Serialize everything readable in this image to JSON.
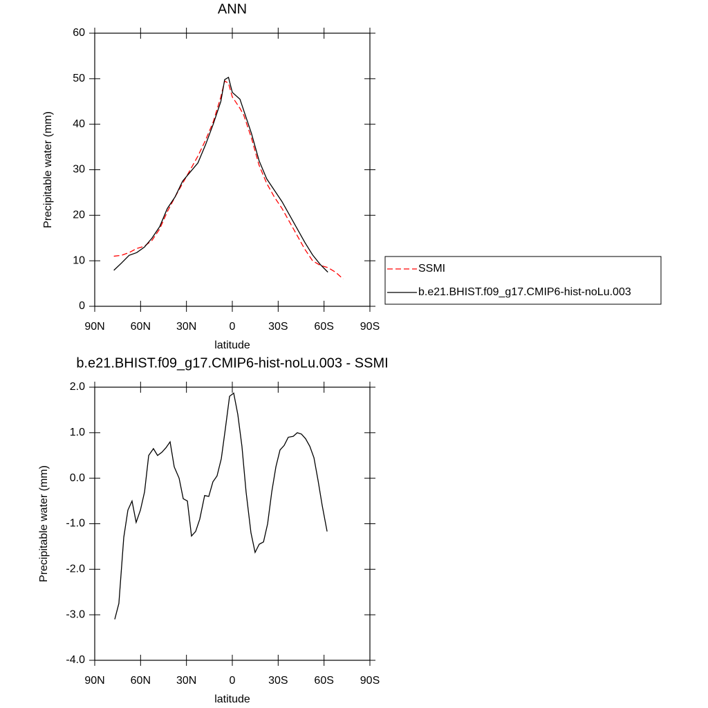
{
  "chart_data": [
    {
      "type": "line",
      "title": "ANN",
      "xlabel": "latitude",
      "ylabel": "Precipitable water (mm)",
      "x": [
        77.5,
        72.5,
        67.5,
        62.5,
        57.5,
        52.5,
        47.5,
        42.5,
        37.5,
        32.5,
        27.5,
        22.5,
        17.5,
        12.5,
        7.5,
        5,
        2.5,
        0,
        -5,
        -7.5,
        -12.5,
        -17.5,
        -22.5,
        -27.5,
        -32.5,
        -37.5,
        -42.5,
        -47.5,
        -52.5,
        -57.5,
        -62.5,
        -67.5,
        -72.5
      ],
      "series": [
        {
          "name": "SSMI",
          "color": "#ff0000",
          "dash": true,
          "values": [
            11,
            11.2,
            11.8,
            12.7,
            13.2,
            14.5,
            17,
            20.8,
            24,
            27,
            30,
            33,
            36.5,
            40.5,
            46,
            49.5,
            49,
            46,
            43.5,
            42,
            37,
            31,
            27,
            24,
            21.5,
            18.5,
            15.5,
            12.5,
            10,
            9,
            8.5,
            7.5,
            6
          ]
        },
        {
          "name": "b.e21.BHIST.f09_g17.CMIP6-hist-noLu.003",
          "color": "#000000",
          "dash": false,
          "values": [
            7.9,
            9.5,
            11.2,
            11.8,
            13,
            15,
            17.5,
            21.5,
            24,
            27.5,
            29.5,
            31.5,
            35.5,
            40,
            45,
            49.8,
            50.3,
            47,
            45.5,
            43,
            38,
            32,
            28,
            25.5,
            23,
            20,
            17,
            14,
            11.3,
            9.2,
            7.5,
            null,
            null
          ]
        }
      ],
      "xlim": [
        90,
        -90
      ],
      "xticks": [
        {
          "value": 90,
          "label": "90N"
        },
        {
          "value": 60,
          "label": "60N"
        },
        {
          "value": 30,
          "label": "30N"
        },
        0,
        {
          "value": -30,
          "label": "30S"
        },
        {
          "value": -60,
          "label": "60S"
        },
        {
          "value": -90,
          "label": "90S"
        }
      ],
      "ylim": [
        0,
        60
      ],
      "yticks": [
        0,
        10,
        20,
        30,
        40,
        50,
        60
      ],
      "legend": "right"
    },
    {
      "type": "line",
      "title": "b.e21.BHIST.f09_g17.CMIP6-hist-noLu.003 - SSMI",
      "xlabel": "latitude",
      "ylabel": "Precipitable water (mm)",
      "x": [
        76.9,
        74.2,
        71.0,
        68.3,
        65.6,
        62.9,
        60.1,
        57.4,
        54.7,
        51.6,
        48.9,
        46.1,
        43.4,
        40.7,
        38.0,
        34.8,
        32.1,
        29.4,
        26.7,
        24.0,
        21.3,
        18.1,
        15.4,
        12.7,
        10.0,
        7.2,
        4.5,
        1.8,
        -0.9,
        -3.6,
        -6.3,
        -9.0,
        -12.2,
        -14.9,
        -17.6,
        -20.4,
        -23.1,
        -25.8,
        -28.5,
        -31.2,
        -33.9,
        -36.6,
        -39.8,
        -42.5,
        -45.2,
        -47.9,
        -50.7,
        -53.4,
        -56.1,
        -58.8,
        -62.0
      ],
      "values": [
        -3.1,
        -2.75,
        -1.3,
        -0.7,
        -0.5,
        -0.97,
        -0.7,
        -0.3,
        0.5,
        0.65,
        0.5,
        0.57,
        0.67,
        0.8,
        0.25,
        0.0,
        -0.45,
        -0.5,
        -1.27,
        -1.17,
        -0.9,
        -0.38,
        -0.4,
        -0.08,
        0.05,
        0.43,
        1.1,
        1.8,
        1.87,
        1.4,
        0.7,
        -0.3,
        -1.2,
        -1.63,
        -1.45,
        -1.4,
        -1.0,
        -0.3,
        0.25,
        0.62,
        0.72,
        0.9,
        0.92,
        1.0,
        0.97,
        0.87,
        0.7,
        0.45,
        -0.05,
        -0.6,
        -1.17
      ],
      "color": "#000000",
      "xlim": [
        90,
        -90
      ],
      "xticks": [
        {
          "value": 90,
          "label": "90N"
        },
        {
          "value": 60,
          "label": "60N"
        },
        {
          "value": 30,
          "label": "30N"
        },
        0,
        {
          "value": -30,
          "label": "30S"
        },
        {
          "value": -60,
          "label": "60S"
        },
        {
          "value": -90,
          "label": "90S"
        }
      ],
      "ylim": [
        -4,
        2
      ],
      "yticks": [
        {
          "value": -4,
          "label": "-4.0"
        },
        {
          "value": -3,
          "label": "-3.0"
        },
        {
          "value": -2,
          "label": "-2.0"
        },
        {
          "value": -1,
          "label": "-1.0"
        },
        {
          "value": 0,
          "label": "0.0"
        },
        {
          "value": 1,
          "label": "1.0"
        },
        {
          "value": 2,
          "label": "2.0"
        }
      ]
    }
  ]
}
